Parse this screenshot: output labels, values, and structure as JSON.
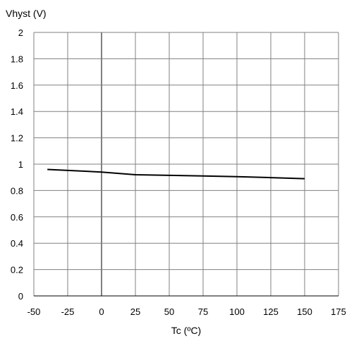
{
  "chart_data": {
    "type": "line",
    "title": "",
    "ylabel": "Vhyst (V)",
    "xlabel": "Tc (ºC)",
    "xlim": [
      -50,
      175
    ],
    "ylim": [
      0,
      2
    ],
    "xticks": [
      -50,
      -25,
      0,
      25,
      50,
      75,
      100,
      125,
      150,
      175
    ],
    "yticks": [
      0,
      0.2,
      0.4,
      0.6,
      0.8,
      1,
      1.2,
      1.4,
      1.6,
      1.8,
      2
    ],
    "grid": true,
    "legend": "none",
    "series": [
      {
        "color": "#000000",
        "x": [
          -40,
          0,
          25,
          50,
          75,
          100,
          125,
          150
        ],
        "y": [
          0.96,
          0.94,
          0.92,
          0.915,
          0.91,
          0.905,
          0.898,
          0.89
        ]
      }
    ],
    "colors": {
      "grid": "#808080",
      "zero_line": "#000000",
      "axis": "#000000"
    }
  }
}
